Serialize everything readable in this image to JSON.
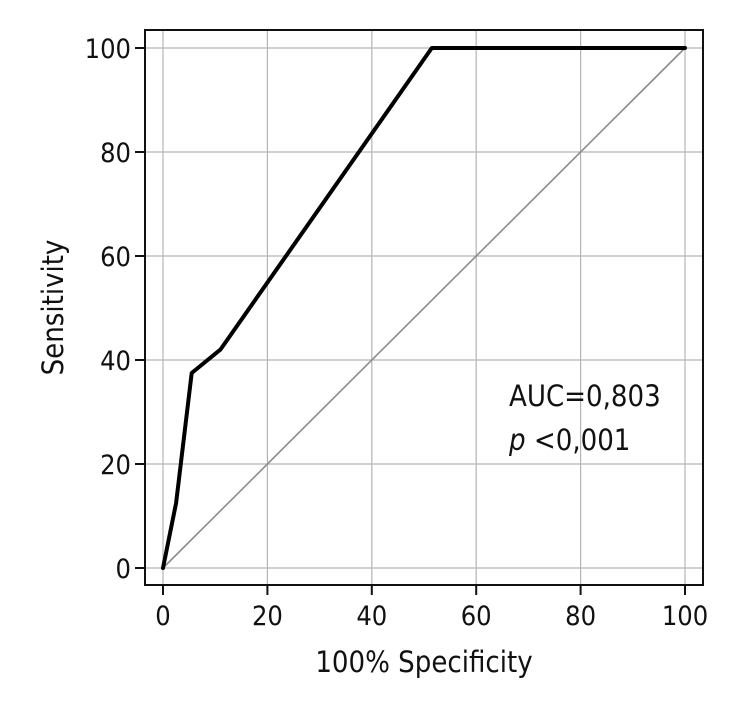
{
  "chart_data": {
    "type": "line",
    "xlabel": "100% Specificity",
    "ylabel": "Sensitivity",
    "xlim": [
      0,
      100
    ],
    "ylim": [
      0,
      100
    ],
    "xticks": [
      0,
      20,
      40,
      60,
      80,
      100
    ],
    "yticks": [
      0,
      20,
      40,
      60,
      80,
      100
    ],
    "grid": true,
    "series": [
      {
        "style": "roc-curve",
        "color": "#000000",
        "x": [
          0,
          2.5,
          5.5,
          11,
          51.5,
          100
        ],
        "y": [
          0,
          12.5,
          37.5,
          42,
          100,
          100
        ]
      },
      {
        "style": "reference-diagonal",
        "color": "#8c8c8c",
        "x": [
          0,
          100
        ],
        "y": [
          0,
          100
        ]
      }
    ],
    "annotations": {
      "auc": "AUC=0,803",
      "p_symbol": "p",
      "p_value": " <0,001"
    }
  }
}
